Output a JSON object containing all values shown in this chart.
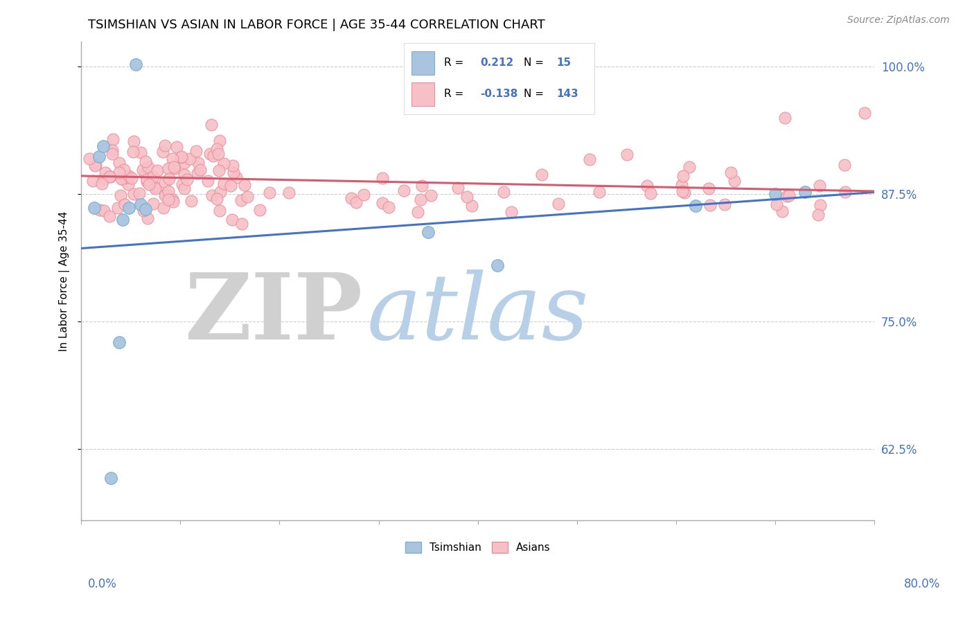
{
  "title": "TSIMSHIAN VS ASIAN IN LABOR FORCE | AGE 35-44 CORRELATION CHART",
  "source_text": "Source: ZipAtlas.com",
  "ylabel": "In Labor Force | Age 35-44",
  "xlim": [
    0.0,
    0.8
  ],
  "ylim": [
    0.555,
    1.025
  ],
  "yticks": [
    0.625,
    0.75,
    0.875,
    1.0
  ],
  "ytick_labels": [
    "62.5%",
    "75.0%",
    "87.5%",
    "100.0%"
  ],
  "tsimshian_color": "#aac4e0",
  "tsimshian_edge": "#7bafd4",
  "asian_color": "#f7c0c8",
  "asian_edge": "#e8909a",
  "trend_blue": "#4472c4",
  "trend_pink": "#d45a70",
  "R_tsimshian": 0.212,
  "N_tsimshian": 15,
  "R_asian": -0.138,
  "N_asian": 143,
  "watermark_zip": "ZIP",
  "watermark_atlas": "atlas",
  "watermark_zip_color": "#d0d0d0",
  "watermark_atlas_color": "#b8cfe8",
  "title_fontsize": 13,
  "source_fontsize": 10,
  "label_fontsize": 11,
  "tick_fontsize": 12,
  "ts_x": [
    0.013,
    0.018,
    0.022,
    0.03,
    0.038,
    0.042,
    0.048,
    0.055,
    0.06,
    0.065,
    0.35,
    0.42,
    0.62,
    0.7,
    0.73
  ],
  "ts_y": [
    0.862,
    0.912,
    0.922,
    0.597,
    0.73,
    0.85,
    0.862,
    1.002,
    0.865,
    0.86,
    0.838,
    0.805,
    0.864,
    0.875,
    0.877
  ],
  "trend_ts_x0": 0.0,
  "trend_ts_y0": 0.822,
  "trend_ts_x1": 0.8,
  "trend_ts_y1": 0.877,
  "trend_as_x0": 0.0,
  "trend_as_y0": 0.893,
  "trend_as_x1": 0.8,
  "trend_as_y1": 0.878
}
